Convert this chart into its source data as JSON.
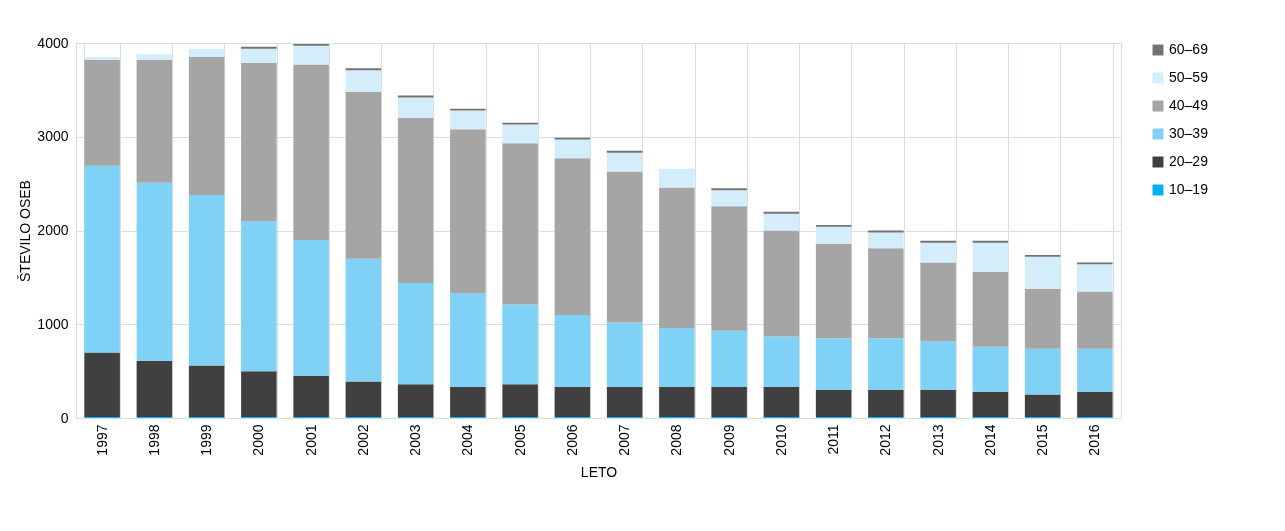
{
  "chart_data": {
    "type": "bar",
    "stacked": true,
    "xlabel": "LETO",
    "ylabel": "ŠTEVILO OSEB",
    "ylim": [
      0,
      4000
    ],
    "yticks": [
      0,
      1000,
      2000,
      3000,
      4000
    ],
    "grid": true,
    "legend": "right",
    "categories": [
      "1997",
      "1998",
      "1999",
      "2000",
      "2001",
      "2002",
      "2003",
      "2004",
      "2005",
      "2006",
      "2007",
      "2008",
      "2009",
      "2010",
      "2011",
      "2012",
      "2013",
      "2014",
      "2015",
      "2016"
    ],
    "series": [
      {
        "name": "10–19",
        "color": "#00b0f0",
        "values": [
          10,
          10,
          10,
          10,
          10,
          10,
          10,
          10,
          10,
          10,
          10,
          10,
          10,
          10,
          10,
          10,
          10,
          10,
          10,
          10
        ]
      },
      {
        "name": "20–29",
        "color": "#404040",
        "values": [
          690,
          600,
          550,
          490,
          440,
          380,
          350,
          320,
          350,
          320,
          320,
          320,
          320,
          320,
          290,
          290,
          290,
          270,
          240,
          270
        ]
      },
      {
        "name": "30–39",
        "color": "#7fd1f5",
        "values": [
          1990,
          1900,
          1820,
          1600,
          1450,
          1310,
          1080,
          1000,
          850,
          770,
          690,
          630,
          600,
          540,
          550,
          550,
          520,
          480,
          490,
          460
        ]
      },
      {
        "name": "40–49",
        "color": "#a5a5a5",
        "values": [
          1130,
          1310,
          1470,
          1690,
          1870,
          1780,
          1760,
          1750,
          1720,
          1670,
          1610,
          1500,
          1330,
          1130,
          1010,
          960,
          840,
          800,
          640,
          610
        ]
      },
      {
        "name": "50–59",
        "color": "#d4edfa",
        "values": [
          30,
          60,
          90,
          150,
          200,
          230,
          220,
          200,
          200,
          200,
          200,
          200,
          170,
          180,
          180,
          170,
          210,
          310,
          340,
          290
        ]
      },
      {
        "name": "60–69",
        "color": "#767171",
        "values": [
          0,
          0,
          0,
          20,
          20,
          20,
          20,
          20,
          20,
          20,
          20,
          0,
          20,
          20,
          20,
          20,
          20,
          20,
          20,
          20
        ]
      }
    ]
  }
}
